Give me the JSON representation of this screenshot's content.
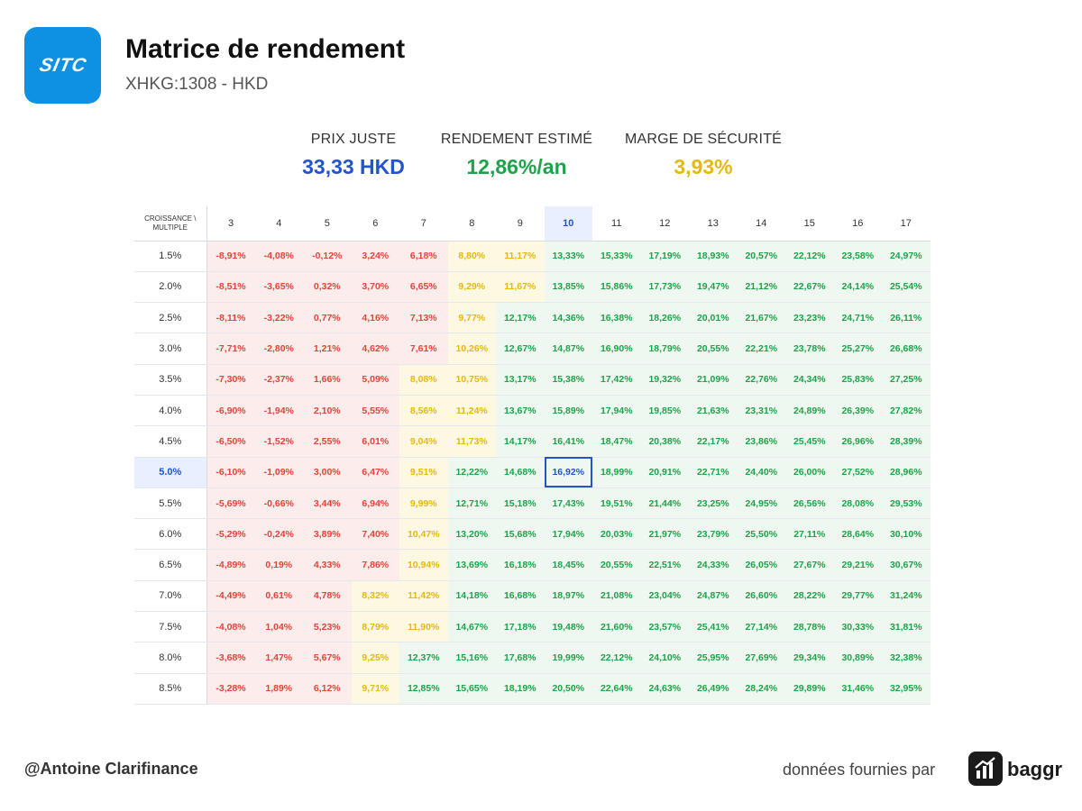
{
  "header": {
    "logo_text": "SITC",
    "title": "Matrice de rendement",
    "subtitle": "XHKG:1308 - HKD"
  },
  "metrics": [
    {
      "label": "PRIX JUSTE",
      "value": "33,33 HKD",
      "color": "#2255cc"
    },
    {
      "label": "RENDEMENT ESTIMÉ",
      "value": "12,86%/an",
      "color": "#1ea34a"
    },
    {
      "label": "MARGE DE SÉCURITÉ",
      "value": "3,93%",
      "color": "#e5b812"
    }
  ],
  "colors": {
    "red": "#e0453a",
    "yellow": "#e5b812",
    "green": "#1ea34a",
    "highlight": "#2255cc"
  },
  "chart_data": {
    "type": "heatmap",
    "corner_label": "CROISSANCE \\ MULTIPLE",
    "columns": [
      "3",
      "4",
      "5",
      "6",
      "7",
      "8",
      "9",
      "10",
      "11",
      "12",
      "13",
      "14",
      "15",
      "16",
      "17"
    ],
    "rows": [
      "1.5%",
      "2.0%",
      "2.5%",
      "3.0%",
      "3.5%",
      "4.0%",
      "4.5%",
      "5.0%",
      "5.5%",
      "6.0%",
      "6.5%",
      "7.0%",
      "7.5%",
      "8.0%",
      "8.5%"
    ],
    "highlight_row": "5.0%",
    "highlight_column": "10",
    "cells": [
      [
        "-8,91%",
        "-4,08%",
        "-0,12%",
        "3,24%",
        "6,18%",
        "8,80%",
        "11,17%",
        "13,33%",
        "15,33%",
        "17,19%",
        "18,93%",
        "20,57%",
        "22,12%",
        "23,58%",
        "24,97%"
      ],
      [
        "-8,51%",
        "-3,65%",
        "0,32%",
        "3,70%",
        "6,65%",
        "9,29%",
        "11,67%",
        "13,85%",
        "15,86%",
        "17,73%",
        "19,47%",
        "21,12%",
        "22,67%",
        "24,14%",
        "25,54%"
      ],
      [
        "-8,11%",
        "-3,22%",
        "0,77%",
        "4,16%",
        "7,13%",
        "9,77%",
        "12,17%",
        "14,36%",
        "16,38%",
        "18,26%",
        "20,01%",
        "21,67%",
        "23,23%",
        "24,71%",
        "26,11%"
      ],
      [
        "-7,71%",
        "-2,80%",
        "1,21%",
        "4,62%",
        "7,61%",
        "10,26%",
        "12,67%",
        "14,87%",
        "16,90%",
        "18,79%",
        "20,55%",
        "22,21%",
        "23,78%",
        "25,27%",
        "26,68%"
      ],
      [
        "-7,30%",
        "-2,37%",
        "1,66%",
        "5,09%",
        "8,08%",
        "10,75%",
        "13,17%",
        "15,38%",
        "17,42%",
        "19,32%",
        "21,09%",
        "22,76%",
        "24,34%",
        "25,83%",
        "27,25%"
      ],
      [
        "-6,90%",
        "-1,94%",
        "2,10%",
        "5,55%",
        "8,56%",
        "11,24%",
        "13,67%",
        "15,89%",
        "17,94%",
        "19,85%",
        "21,63%",
        "23,31%",
        "24,89%",
        "26,39%",
        "27,82%"
      ],
      [
        "-6,50%",
        "-1,52%",
        "2,55%",
        "6,01%",
        "9,04%",
        "11,73%",
        "14,17%",
        "16,41%",
        "18,47%",
        "20,38%",
        "22,17%",
        "23,86%",
        "25,45%",
        "26,96%",
        "28,39%"
      ],
      [
        "-6,10%",
        "-1,09%",
        "3,00%",
        "6,47%",
        "9,51%",
        "12,22%",
        "14,68%",
        "16,92%",
        "18,99%",
        "20,91%",
        "22,71%",
        "24,40%",
        "26,00%",
        "27,52%",
        "28,96%"
      ],
      [
        "-5,69%",
        "-0,66%",
        "3,44%",
        "6,94%",
        "9,99%",
        "12,71%",
        "15,18%",
        "17,43%",
        "19,51%",
        "21,44%",
        "23,25%",
        "24,95%",
        "26,56%",
        "28,08%",
        "29,53%"
      ],
      [
        "-5,29%",
        "-0,24%",
        "3,89%",
        "7,40%",
        "10,47%",
        "13,20%",
        "15,68%",
        "17,94%",
        "20,03%",
        "21,97%",
        "23,79%",
        "25,50%",
        "27,11%",
        "28,64%",
        "30,10%"
      ],
      [
        "-4,89%",
        "0,19%",
        "4,33%",
        "7,86%",
        "10,94%",
        "13,69%",
        "16,18%",
        "18,45%",
        "20,55%",
        "22,51%",
        "24,33%",
        "26,05%",
        "27,67%",
        "29,21%",
        "30,67%"
      ],
      [
        "-4,49%",
        "0,61%",
        "4,78%",
        "8,32%",
        "11,42%",
        "14,18%",
        "16,68%",
        "18,97%",
        "21,08%",
        "23,04%",
        "24,87%",
        "26,60%",
        "28,22%",
        "29,77%",
        "31,24%"
      ],
      [
        "-4,08%",
        "1,04%",
        "5,23%",
        "8,79%",
        "11,90%",
        "14,67%",
        "17,18%",
        "19,48%",
        "21,60%",
        "23,57%",
        "25,41%",
        "27,14%",
        "28,78%",
        "30,33%",
        "31,81%"
      ],
      [
        "-3,68%",
        "1,47%",
        "5,67%",
        "9,25%",
        "12,37%",
        "15,16%",
        "17,68%",
        "19,99%",
        "22,12%",
        "24,10%",
        "25,95%",
        "27,69%",
        "29,34%",
        "30,89%",
        "32,38%"
      ],
      [
        "-3,28%",
        "1,89%",
        "6,12%",
        "9,71%",
        "12,85%",
        "15,65%",
        "18,19%",
        "20,50%",
        "22,64%",
        "24,63%",
        "26,49%",
        "28,24%",
        "29,89%",
        "31,46%",
        "32,95%"
      ]
    ],
    "tones": [
      [
        "r",
        "r",
        "r",
        "r",
        "r",
        "y",
        "y",
        "g",
        "g",
        "g",
        "g",
        "g",
        "g",
        "g",
        "g"
      ],
      [
        "r",
        "r",
        "r",
        "r",
        "r",
        "y",
        "y",
        "g",
        "g",
        "g",
        "g",
        "g",
        "g",
        "g",
        "g"
      ],
      [
        "r",
        "r",
        "r",
        "r",
        "r",
        "y",
        "g",
        "g",
        "g",
        "g",
        "g",
        "g",
        "g",
        "g",
        "g"
      ],
      [
        "r",
        "r",
        "r",
        "r",
        "r",
        "y",
        "g",
        "g",
        "g",
        "g",
        "g",
        "g",
        "g",
        "g",
        "g"
      ],
      [
        "r",
        "r",
        "r",
        "r",
        "y",
        "y",
        "g",
        "g",
        "g",
        "g",
        "g",
        "g",
        "g",
        "g",
        "g"
      ],
      [
        "r",
        "r",
        "r",
        "r",
        "y",
        "y",
        "g",
        "g",
        "g",
        "g",
        "g",
        "g",
        "g",
        "g",
        "g"
      ],
      [
        "r",
        "r",
        "r",
        "r",
        "y",
        "y",
        "g",
        "g",
        "g",
        "g",
        "g",
        "g",
        "g",
        "g",
        "g"
      ],
      [
        "r",
        "r",
        "r",
        "r",
        "y",
        "g",
        "g",
        "g",
        "g",
        "g",
        "g",
        "g",
        "g",
        "g",
        "g"
      ],
      [
        "r",
        "r",
        "r",
        "r",
        "y",
        "g",
        "g",
        "g",
        "g",
        "g",
        "g",
        "g",
        "g",
        "g",
        "g"
      ],
      [
        "r",
        "r",
        "r",
        "r",
        "y",
        "g",
        "g",
        "g",
        "g",
        "g",
        "g",
        "g",
        "g",
        "g",
        "g"
      ],
      [
        "r",
        "r",
        "r",
        "r",
        "y",
        "g",
        "g",
        "g",
        "g",
        "g",
        "g",
        "g",
        "g",
        "g",
        "g"
      ],
      [
        "r",
        "r",
        "r",
        "y",
        "y",
        "g",
        "g",
        "g",
        "g",
        "g",
        "g",
        "g",
        "g",
        "g",
        "g"
      ],
      [
        "r",
        "r",
        "r",
        "y",
        "y",
        "g",
        "g",
        "g",
        "g",
        "g",
        "g",
        "g",
        "g",
        "g",
        "g"
      ],
      [
        "r",
        "r",
        "r",
        "y",
        "g",
        "g",
        "g",
        "g",
        "g",
        "g",
        "g",
        "g",
        "g",
        "g",
        "g"
      ],
      [
        "r",
        "r",
        "r",
        "y",
        "g",
        "g",
        "g",
        "g",
        "g",
        "g",
        "g",
        "g",
        "g",
        "g",
        "g"
      ]
    ]
  },
  "footer": {
    "author": "@Antoine Clarifinance",
    "source_label": "données fournies par",
    "brand": "baggr",
    "brand_icon": "bar-chart-icon"
  }
}
